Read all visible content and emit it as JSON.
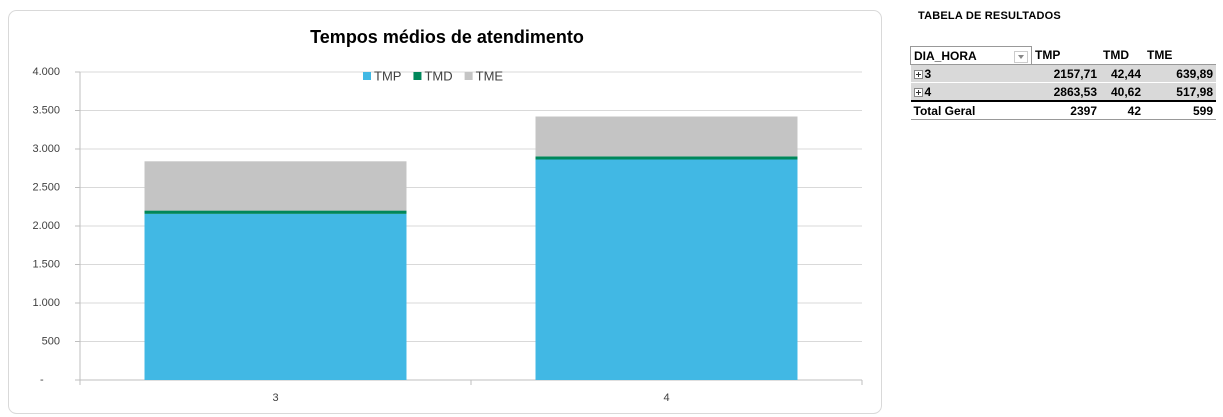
{
  "chart_data": {
    "type": "stacked-bar",
    "title": "Tempos médios de atendimento",
    "categories": [
      "3",
      "4"
    ],
    "series": [
      {
        "name": "TMP",
        "color": "#41b8e4",
        "values": [
          2157.71,
          2863.53
        ]
      },
      {
        "name": "TMD",
        "color": "#00875a",
        "values": [
          42.44,
          40.62
        ]
      },
      {
        "name": "TME",
        "color": "#c4c4c4",
        "values": [
          639.89,
          517.98
        ]
      }
    ],
    "ylim": [
      0,
      4000
    ],
    "yticks": [
      {
        "value": 0,
        "label": "-"
      },
      500,
      {
        "value": 1000,
        "label": "1.000"
      },
      {
        "value": 1500,
        "label": "1.500"
      },
      {
        "value": 2000,
        "label": "2.000"
      },
      {
        "value": 2500,
        "label": "2.500"
      },
      {
        "value": 3000,
        "label": "3.000"
      },
      {
        "value": 3500,
        "label": "3.500"
      },
      {
        "value": 4000,
        "label": "4.000"
      }
    ],
    "grid": true,
    "legend": "top"
  },
  "table": {
    "title": "TABELA DE RESULTADOS",
    "header": [
      "DIA_HORA",
      "TMP",
      "TMD",
      "TME"
    ],
    "rows": [
      [
        "3",
        "2157,71",
        "42,44",
        "639,89"
      ],
      [
        "4",
        "2863,53",
        "40,62",
        "517,98"
      ]
    ],
    "total": [
      "Total Geral",
      "2397",
      "42",
      "599"
    ]
  }
}
